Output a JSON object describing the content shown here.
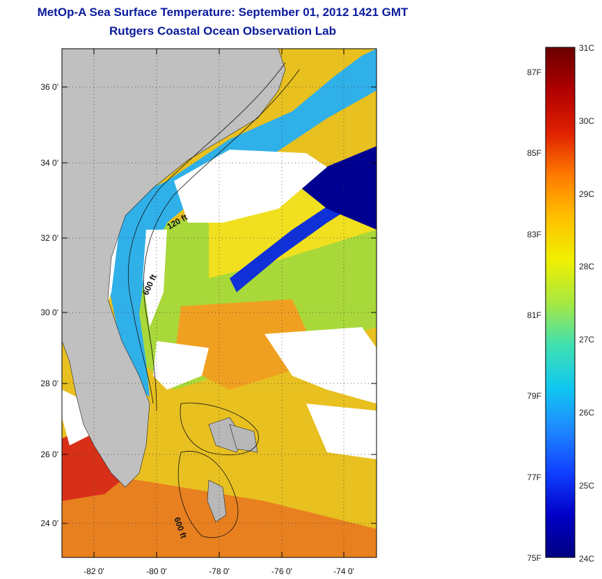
{
  "header": {
    "title": "MetOp-A Sea Surface Temperature:  September 01, 2012 1421 GMT",
    "subtitle": "Rutgers Coastal Ocean Observation Lab"
  },
  "map": {
    "lat_labels": [
      "36 0'",
      "34 0'",
      "32 0'",
      "30 0'",
      "28 0'",
      "26 0'",
      "24 0'"
    ],
    "lon_labels": [
      "-82 0'",
      "-80 0'",
      "-78 0'",
      "-76 0'",
      "-74 0'"
    ],
    "contour_labels": [
      "120 ft",
      "600 ft",
      "600 ft"
    ]
  },
  "colorbar": {
    "celsius_labels": [
      "31C",
      "30C",
      "29C",
      "28C",
      "27C",
      "26C",
      "25C",
      "24C"
    ],
    "fahrenheit_labels": [
      "87F",
      "85F",
      "83F",
      "81F",
      "79F",
      "77F",
      "75F"
    ],
    "stops": [
      "#6a0000",
      "#b00000",
      "#e02000",
      "#ff7a00",
      "#ffc000",
      "#f0f000",
      "#a8e840",
      "#40e0b0",
      "#10c8f0",
      "#1e88ff",
      "#1040ff",
      "#0000c8",
      "#000080"
    ]
  },
  "colors": {
    "land": "#c0c0c0",
    "cloud": "#ffffff",
    "title": "#0a1a9c"
  }
}
